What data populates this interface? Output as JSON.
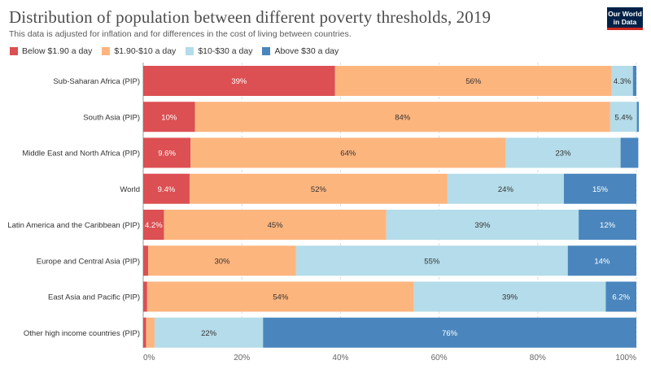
{
  "header": {
    "title": "Distribution of population between different poverty thresholds, 2019",
    "subtitle": "This data is adjusted for inflation and for differences in the cost of living between countries.",
    "logo_line1": "Our World",
    "logo_line2": "in Data"
  },
  "chart_data": {
    "type": "bar",
    "orientation": "horizontal",
    "stacked": true,
    "title": "Distribution of population between different poverty thresholds, 2019",
    "subtitle": "This data is adjusted for inflation and for differences in the cost of living between countries.",
    "legend_position": "top-left",
    "xlim": [
      0,
      100
    ],
    "x_ticks": [
      "0%",
      "20%",
      "40%",
      "60%",
      "80%",
      "100%"
    ],
    "grid": true,
    "categories": [
      "Sub-Saharan Africa (PIP)",
      "South Asia (PIP)",
      "Middle East and North Africa (PIP)",
      "World",
      "Latin America and the Caribbean (PIP)",
      "Europe and Central Asia (PIP)",
      "East Asia and Pacific (PIP)",
      "Other high income countries (PIP)"
    ],
    "series": [
      {
        "name": "Below $1.90 a day",
        "color": "#dc4f52",
        "text_color": "#ffffff",
        "values": [
          38.9,
          10.5,
          9.6,
          9.4,
          4.2,
          1.0,
          0.8,
          0.6
        ],
        "labels": [
          "39%",
          "10%",
          "9.6%",
          "9.4%",
          "4.2%",
          "",
          "",
          ""
        ]
      },
      {
        "name": "$1.90-$10 a day",
        "color": "#fdb57e",
        "text_color": "#333333",
        "values": [
          56.1,
          84.2,
          63.9,
          52.3,
          45.1,
          30.0,
          54.1,
          1.7
        ],
        "labels": [
          "56%",
          "84%",
          "64%",
          "52%",
          "45%",
          "30%",
          "54%",
          ""
        ]
      },
      {
        "name": "$10-$30 a day",
        "color": "#b4dcea",
        "text_color": "#333333",
        "values": [
          4.3,
          5.4,
          23.3,
          23.6,
          39.0,
          55.1,
          38.9,
          22.0
        ],
        "labels": [
          "4.3%",
          "5.4%",
          "23%",
          "24%",
          "39%",
          "55%",
          "39%",
          "22%"
        ]
      },
      {
        "name": "Above $30 a day",
        "color": "#4a86bd",
        "text_color": "#ffffff",
        "values": [
          0.7,
          0.4,
          3.6,
          14.7,
          11.7,
          13.9,
          6.2,
          75.7
        ],
        "labels": [
          "",
          "",
          "",
          "15%",
          "12%",
          "14%",
          "6.2%",
          "76%"
        ]
      }
    ]
  }
}
